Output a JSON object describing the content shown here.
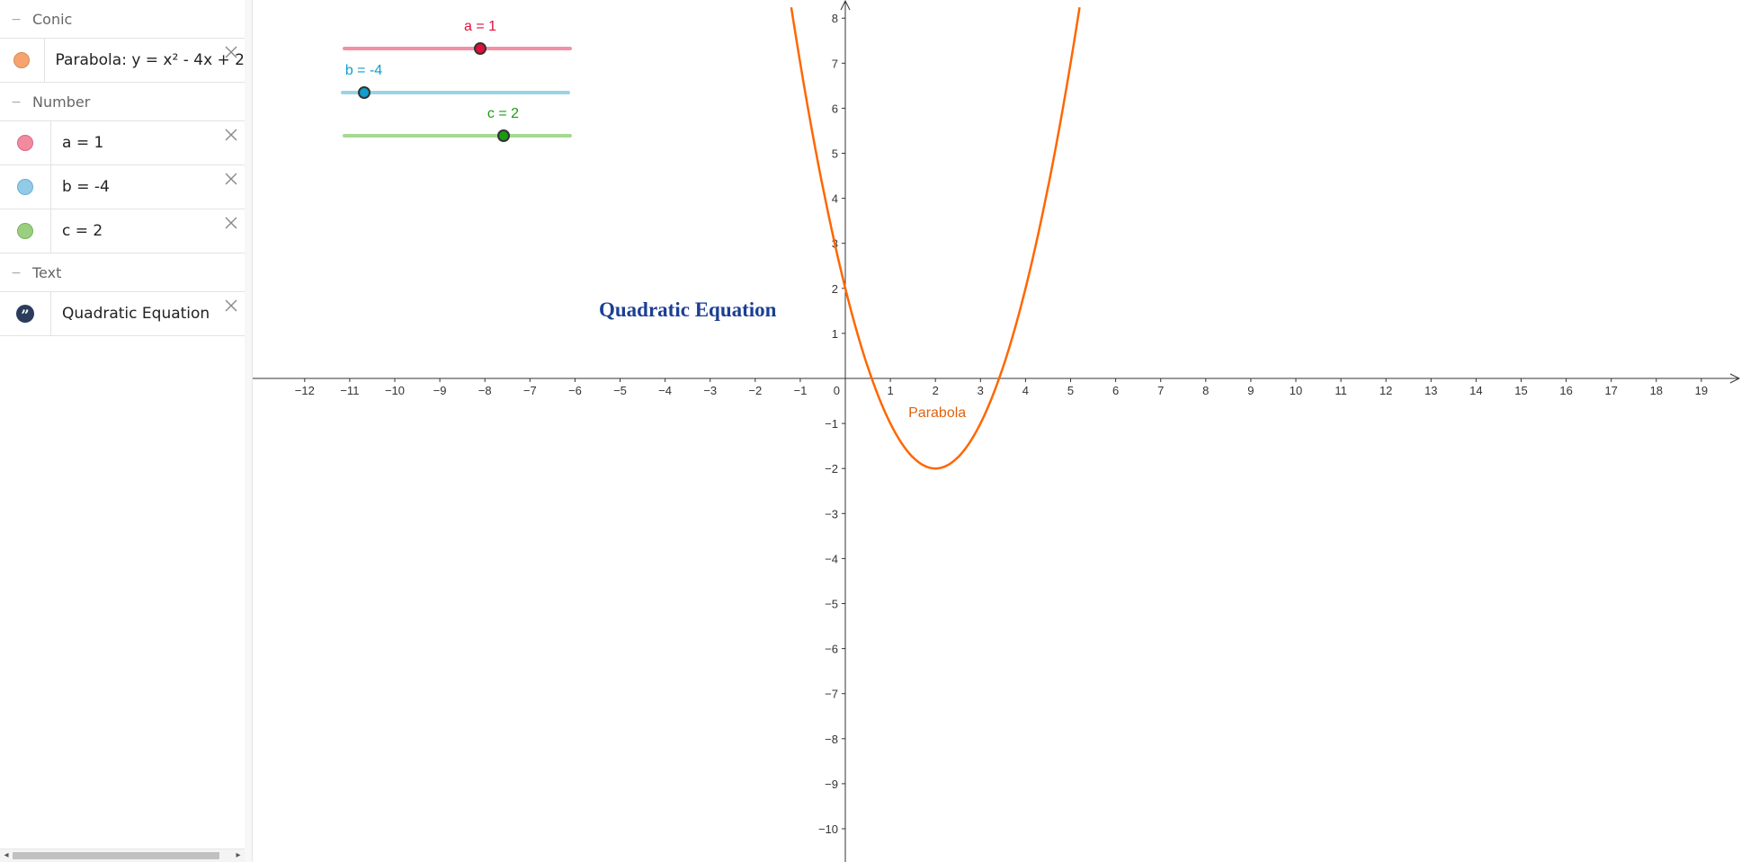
{
  "algebra": {
    "groups": [
      {
        "title": "Conic",
        "items": [
          {
            "text": "Parabola: y = x² - 4x + 2",
            "color": "#f5a46e"
          }
        ]
      },
      {
        "title": "Number",
        "items": [
          {
            "text": "a = 1",
            "color": "#f28aa0"
          },
          {
            "text": "b = -4",
            "color": "#92cbe8"
          },
          {
            "text": "c = 2",
            "color": "#99cf7e"
          }
        ]
      },
      {
        "title": "Text",
        "items": [
          {
            "text": "Quadratic Equation",
            "icon": "quote-icon"
          }
        ]
      }
    ],
    "collapse_glyph": "−"
  },
  "sliders": [
    {
      "name": "a",
      "label": "a = 1",
      "value": 1,
      "min": -5,
      "max": 5,
      "color": "#e0103a",
      "track_color": "#f48fa4"
    },
    {
      "name": "b",
      "label": "b = -4",
      "value": -4,
      "min": -5,
      "max": 5,
      "color": "#0c9fd0",
      "track_color": "#9bd2e6"
    },
    {
      "name": "c",
      "label": "c = 2",
      "value": 2,
      "min": -5,
      "max": 5,
      "color": "#1c9a10",
      "track_color": "#a6d992"
    }
  ],
  "text_object": {
    "text": "Quadratic Equation",
    "color": "#1c3f94"
  },
  "chart_data": {
    "type": "line",
    "function": "y = x^2 - 4x + 2",
    "series": [
      {
        "name": "Parabola",
        "color": "#ff6600",
        "coefficients": {
          "a": 1,
          "b": -4,
          "c": 2
        }
      }
    ],
    "xlim": [
      -13,
      20
    ],
    "ylim": [
      -10.8,
      8.4
    ],
    "x_ticks": [
      -12,
      -11,
      -10,
      -9,
      -8,
      -7,
      -6,
      -5,
      -4,
      -3,
      -2,
      -1,
      0,
      1,
      2,
      3,
      4,
      5,
      6,
      7,
      8,
      9,
      10,
      11,
      12,
      13,
      14,
      15,
      16,
      17,
      18,
      19
    ],
    "y_ticks": [
      -10,
      -9,
      -8,
      -7,
      -6,
      -5,
      -4,
      -3,
      -2,
      -1,
      1,
      2,
      3,
      4,
      5,
      6,
      7,
      8
    ],
    "grid": false
  }
}
